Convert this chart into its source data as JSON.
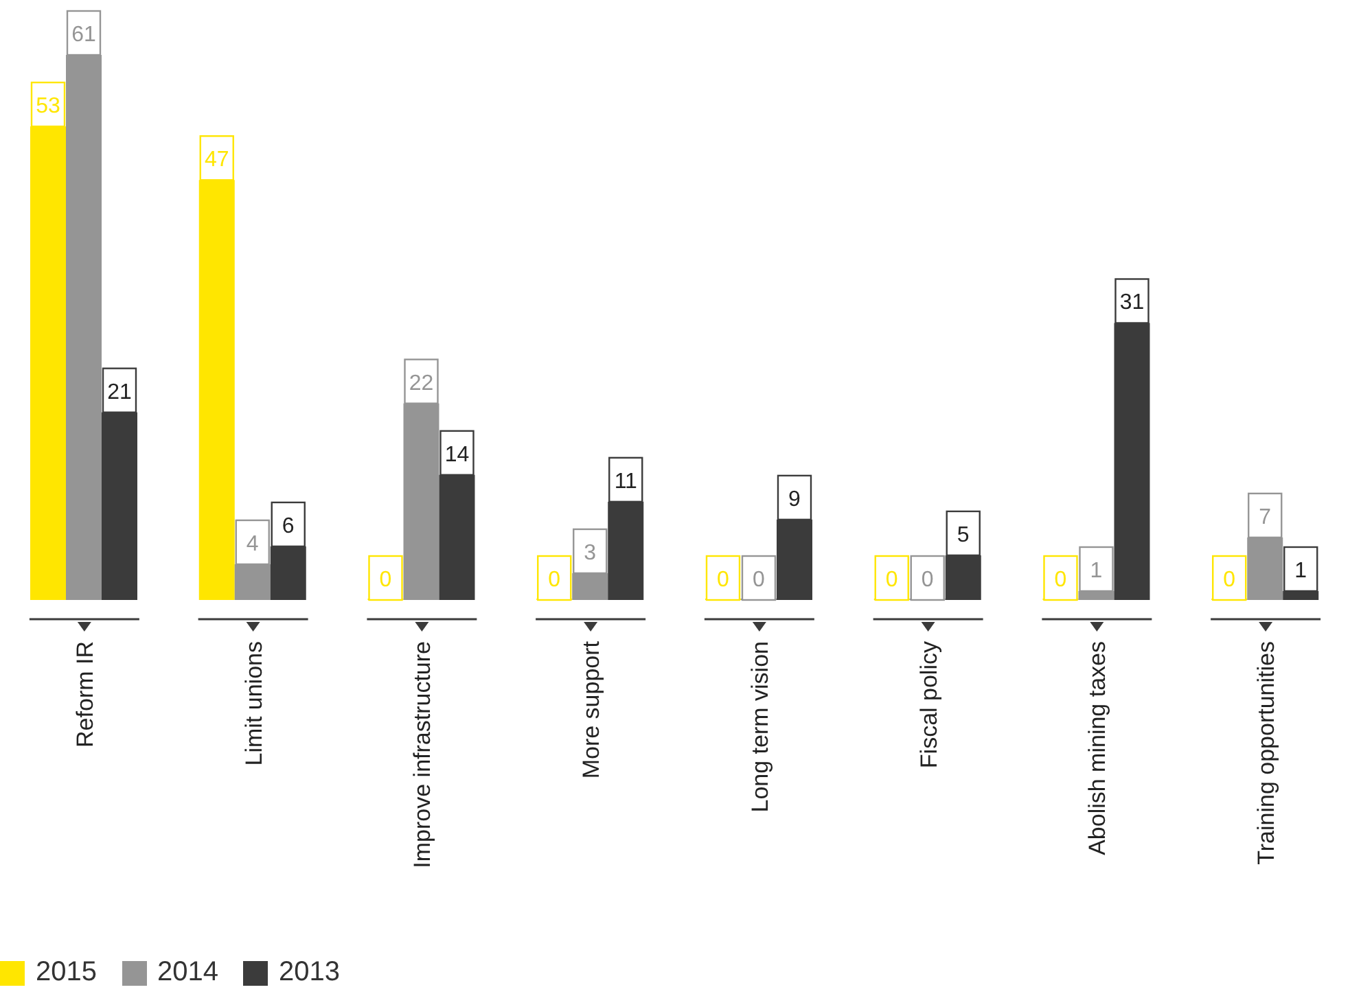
{
  "chart_data": {
    "type": "bar",
    "categories": [
      "Reform IR",
      "Limit unions",
      "Improve infrastructure",
      "More support",
      "Long term vision",
      "Fiscal policy",
      "Abolish mining taxes",
      "Training opportunities"
    ],
    "series": [
      {
        "name": "2015",
        "color": "#ffe600",
        "values": [
          53,
          47,
          0,
          0,
          0,
          0,
          0,
          0
        ]
      },
      {
        "name": "2014",
        "color": "#959595",
        "values": [
          61,
          4,
          22,
          3,
          0,
          0,
          1,
          7
        ]
      },
      {
        "name": "2013",
        "color": "#3b3b3b",
        "values": [
          21,
          6,
          14,
          11,
          9,
          5,
          31,
          1
        ]
      }
    ],
    "data_labels": true,
    "legend": "bottom left",
    "grid": false
  }
}
